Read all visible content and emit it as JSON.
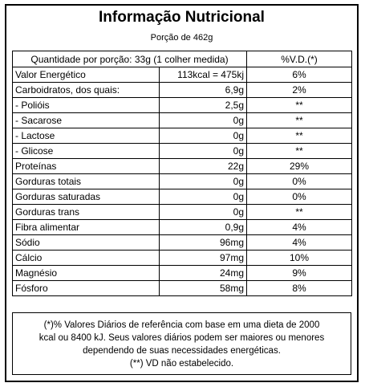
{
  "label": {
    "title": "Informação Nutricional",
    "serving": "Porção de 462g"
  },
  "table": {
    "header_left": "Quantidade por porção: 33g (1 colher medida)",
    "header_right": "%V.D.(*)",
    "rows": [
      {
        "name": "Valor Energético",
        "amount": "113kcal = 475kj",
        "dv": "6%"
      },
      {
        "name": "Carboidratos, dos quais:",
        "amount": "6,9g",
        "dv": "2%"
      },
      {
        "name": " - Polióis",
        "amount": "2,5g",
        "dv": "**"
      },
      {
        "name": " - Sacarose",
        "amount": "0g",
        "dv": "**"
      },
      {
        "name": " - Lactose",
        "amount": "0g",
        "dv": "**"
      },
      {
        "name": " - Glicose",
        "amount": "0g",
        "dv": "**"
      },
      {
        "name": "Proteínas",
        "amount": "22g",
        "dv": "29%"
      },
      {
        "name": "Gorduras totais",
        "amount": "0g",
        "dv": "0%"
      },
      {
        "name": "Gorduras saturadas",
        "amount": "0g",
        "dv": "0%"
      },
      {
        "name": "Gorduras trans",
        "amount": "0g",
        "dv": "**"
      },
      {
        "name": "Fibra alimentar",
        "amount": "0,9g",
        "dv": "4%"
      },
      {
        "name": "Sódio",
        "amount": "96mg",
        "dv": "4%"
      },
      {
        "name": "Cálcio",
        "amount": "97mg",
        "dv": "10%"
      },
      {
        "name": "Magnésio",
        "amount": "24mg",
        "dv": "9%"
      },
      {
        "name": "Fósforo",
        "amount": "58mg",
        "dv": "8%"
      }
    ]
  },
  "footnote": {
    "line1": "(*)% Valores Diários de referência com base em uma dieta de 2000",
    "line2": "kcal ou 8400 kJ. Seus valores diários podem ser maiores ou menores",
    "line3": "dependendo de suas necessidades energéticas.",
    "line4": "(**) VD não estabelecido."
  }
}
